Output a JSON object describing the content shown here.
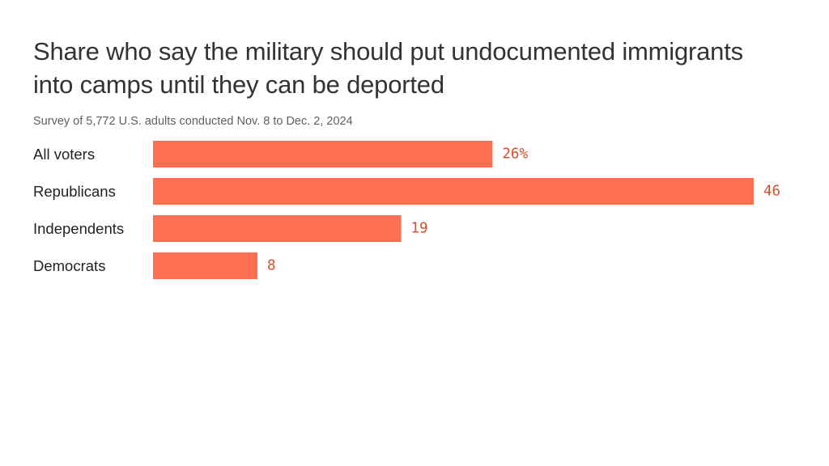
{
  "title": "Share who say the military should put undocumented immigrants into camps until they can be deported",
  "subtitle": "Survey of 5,772 U.S. adults conducted Nov. 8 to Dec. 2, 2024",
  "colors": {
    "bar": "#ff7050",
    "value_label": "#d4502c"
  },
  "chart_data": {
    "type": "bar",
    "orientation": "horizontal",
    "title": "Share who say the military should put undocumented immigrants into camps until they can be deported",
    "subtitle": "Survey of 5,772 U.S. adults conducted Nov. 8 to Dec. 2, 2024",
    "categories": [
      "All voters",
      "Republicans",
      "Independents",
      "Democrats"
    ],
    "values": [
      26,
      46,
      19,
      8
    ],
    "value_labels": [
      "26%",
      "46",
      "19",
      "8"
    ],
    "unit": "%",
    "xlim": [
      0,
      46
    ],
    "grid": false,
    "legend": "none"
  }
}
